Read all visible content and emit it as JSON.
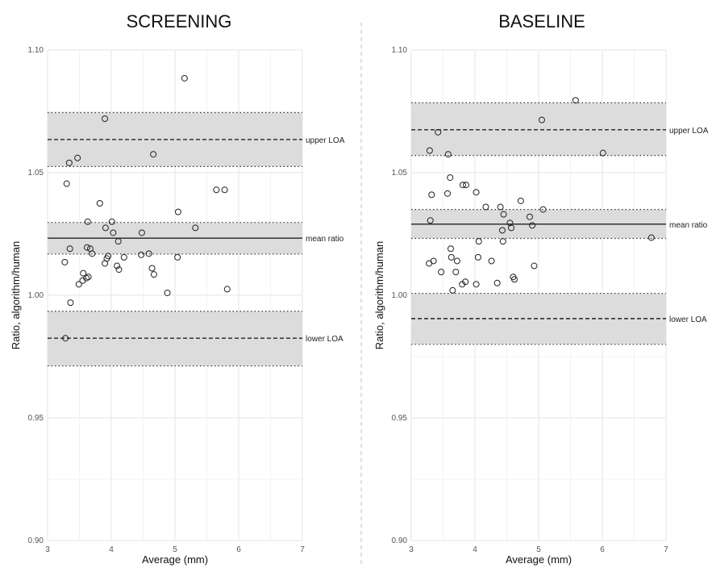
{
  "chart_data": [
    {
      "type": "scatter",
      "title": "SCREENING",
      "xlabel": "Average (mm)",
      "ylabel": "Ratio, algorithm/human",
      "xlim": [
        3,
        7
      ],
      "ylim": [
        0.9,
        1.1
      ],
      "x_ticks": [
        "3",
        "4",
        "5",
        "6",
        "7"
      ],
      "y_ticks": [
        "0.90",
        "0.95",
        "1.00",
        "1.05",
        "1.10"
      ],
      "grid": true,
      "reference_lines": [
        {
          "label": "upper LOA",
          "value": 1.0635,
          "style": "dashed",
          "band": [
            1.0525,
            1.0745
          ]
        },
        {
          "label": "mean ratio",
          "value": 1.0233,
          "style": "solid",
          "band": [
            1.0168,
            1.0297
          ]
        },
        {
          "label": "lower LOA",
          "value": 0.9825,
          "style": "dashed",
          "band": [
            0.9712,
            0.9935
          ]
        }
      ],
      "points": [
        {
          "x": 3.27,
          "y": 1.0135
        },
        {
          "x": 3.28,
          "y": 0.9825
        },
        {
          "x": 3.3,
          "y": 1.0455
        },
        {
          "x": 3.34,
          "y": 1.054
        },
        {
          "x": 3.35,
          "y": 1.019
        },
        {
          "x": 3.36,
          "y": 0.997
        },
        {
          "x": 3.47,
          "y": 1.056
        },
        {
          "x": 3.49,
          "y": 1.0045
        },
        {
          "x": 3.55,
          "y": 1.006
        },
        {
          "x": 3.56,
          "y": 1.009
        },
        {
          "x": 3.61,
          "y": 1.007
        },
        {
          "x": 3.62,
          "y": 1.0195
        },
        {
          "x": 3.63,
          "y": 1.03
        },
        {
          "x": 3.64,
          "y": 1.0075
        },
        {
          "x": 3.67,
          "y": 1.019
        },
        {
          "x": 3.7,
          "y": 1.017
        },
        {
          "x": 3.82,
          "y": 1.0375
        },
        {
          "x": 3.9,
          "y": 1.072
        },
        {
          "x": 3.9,
          "y": 1.013
        },
        {
          "x": 3.91,
          "y": 1.0275
        },
        {
          "x": 3.93,
          "y": 1.015
        },
        {
          "x": 3.95,
          "y": 1.016
        },
        {
          "x": 4.01,
          "y": 1.03
        },
        {
          "x": 4.03,
          "y": 1.0255
        },
        {
          "x": 4.09,
          "y": 1.012
        },
        {
          "x": 4.11,
          "y": 1.022
        },
        {
          "x": 4.12,
          "y": 1.0105
        },
        {
          "x": 4.2,
          "y": 1.0155
        },
        {
          "x": 4.47,
          "y": 1.0165
        },
        {
          "x": 4.48,
          "y": 1.0255
        },
        {
          "x": 4.59,
          "y": 1.017
        },
        {
          "x": 4.64,
          "y": 1.011
        },
        {
          "x": 4.66,
          "y": 1.0575
        },
        {
          "x": 4.67,
          "y": 1.0085
        },
        {
          "x": 4.88,
          "y": 1.001
        },
        {
          "x": 5.04,
          "y": 1.0155
        },
        {
          "x": 5.05,
          "y": 1.034
        },
        {
          "x": 5.15,
          "y": 1.0885
        },
        {
          "x": 5.32,
          "y": 1.0275
        },
        {
          "x": 5.65,
          "y": 1.043
        },
        {
          "x": 5.78,
          "y": 1.043
        },
        {
          "x": 5.82,
          "y": 1.0025
        }
      ]
    },
    {
      "type": "scatter",
      "title": "BASELINE",
      "xlabel": "Average (mm)",
      "ylabel": "Ratio, algorithm/human",
      "xlim": [
        3,
        7
      ],
      "ylim": [
        0.9,
        1.1
      ],
      "x_ticks": [
        "3",
        "4",
        "5",
        "6",
        "7"
      ],
      "y_ticks": [
        "0.90",
        "0.95",
        "1.00",
        "1.05",
        "1.10"
      ],
      "grid": true,
      "reference_lines": [
        {
          "label": "upper LOA",
          "value": 1.0675,
          "style": "dashed",
          "band": [
            1.057,
            1.0785
          ]
        },
        {
          "label": "mean ratio",
          "value": 1.029,
          "style": "solid",
          "band": [
            1.0232,
            1.035
          ]
        },
        {
          "label": "lower LOA",
          "value": 0.9905,
          "style": "dashed",
          "band": [
            0.98,
            1.0008
          ]
        }
      ],
      "points": [
        {
          "x": 3.28,
          "y": 1.013
        },
        {
          "x": 3.29,
          "y": 1.059
        },
        {
          "x": 3.3,
          "y": 1.0305
        },
        {
          "x": 3.32,
          "y": 1.041
        },
        {
          "x": 3.35,
          "y": 1.014
        },
        {
          "x": 3.42,
          "y": 1.0665
        },
        {
          "x": 3.47,
          "y": 1.0095
        },
        {
          "x": 3.57,
          "y": 1.0415
        },
        {
          "x": 3.58,
          "y": 1.0575
        },
        {
          "x": 3.61,
          "y": 1.048
        },
        {
          "x": 3.62,
          "y": 1.019
        },
        {
          "x": 3.63,
          "y": 1.0155
        },
        {
          "x": 3.65,
          "y": 1.002
        },
        {
          "x": 3.7,
          "y": 1.0095
        },
        {
          "x": 3.72,
          "y": 1.014
        },
        {
          "x": 3.8,
          "y": 1.0045
        },
        {
          "x": 3.81,
          "y": 1.045
        },
        {
          "x": 3.85,
          "y": 1.0055
        },
        {
          "x": 3.86,
          "y": 1.045
        },
        {
          "x": 4.02,
          "y": 1.042
        },
        {
          "x": 4.02,
          "y": 1.0045
        },
        {
          "x": 4.05,
          "y": 1.0155
        },
        {
          "x": 4.06,
          "y": 1.022
        },
        {
          "x": 4.17,
          "y": 1.036
        },
        {
          "x": 4.26,
          "y": 1.014
        },
        {
          "x": 4.35,
          "y": 1.005
        },
        {
          "x": 4.4,
          "y": 1.036
        },
        {
          "x": 4.43,
          "y": 1.0265
        },
        {
          "x": 4.44,
          "y": 1.022
        },
        {
          "x": 4.45,
          "y": 1.033
        },
        {
          "x": 4.55,
          "y": 1.0295
        },
        {
          "x": 4.57,
          "y": 1.0275
        },
        {
          "x": 4.6,
          "y": 1.0075
        },
        {
          "x": 4.62,
          "y": 1.0065
        },
        {
          "x": 4.72,
          "y": 1.0385
        },
        {
          "x": 4.86,
          "y": 1.032
        },
        {
          "x": 4.9,
          "y": 1.0285
        },
        {
          "x": 4.93,
          "y": 1.012
        },
        {
          "x": 5.05,
          "y": 1.0715
        },
        {
          "x": 5.07,
          "y": 1.035
        },
        {
          "x": 5.58,
          "y": 1.0795
        },
        {
          "x": 6.01,
          "y": 1.058
        },
        {
          "x": 6.77,
          "y": 1.0235
        }
      ]
    }
  ]
}
